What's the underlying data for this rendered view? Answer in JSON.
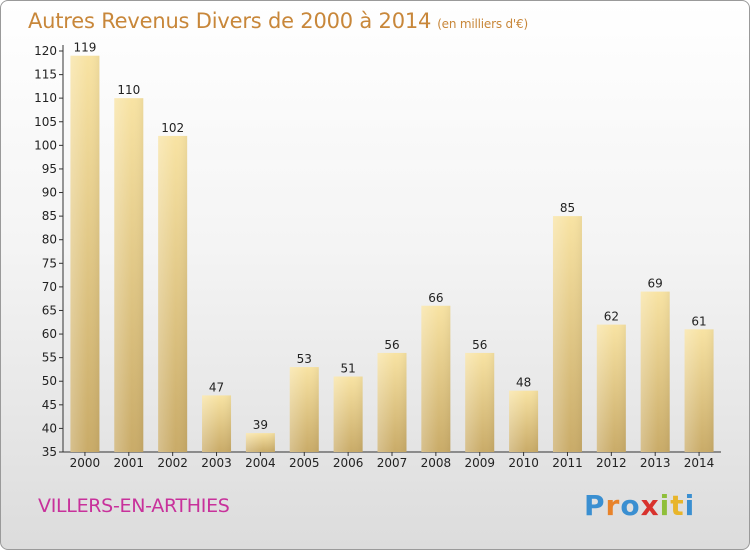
{
  "title": "Autres Revenus Divers de 2000 à 2014",
  "subtitle": "(en milliers d'€)",
  "town": "VILLERS-EN-ARTHIES",
  "logo": {
    "letters": [
      "P",
      "r",
      "o",
      "x",
      "i",
      "t",
      "i"
    ],
    "colors": [
      "#3a8fd1",
      "#e8832a",
      "#3a8fd1",
      "#d8322d",
      "#8fbf3a",
      "#e8b52a",
      "#3a8fd1"
    ]
  },
  "colors": {
    "title": "#c8873a",
    "town": "#c8319b",
    "bar_light": "#f8e3a3",
    "bar_dark": "#c9ab68"
  },
  "chart_data": {
    "type": "bar",
    "categories": [
      "2000",
      "2001",
      "2002",
      "2003",
      "2004",
      "2005",
      "2006",
      "2007",
      "2008",
      "2009",
      "2010",
      "2011",
      "2012",
      "2013",
      "2014"
    ],
    "values": [
      119,
      110,
      102,
      47,
      39,
      53,
      51,
      56,
      66,
      56,
      48,
      85,
      62,
      69,
      61
    ],
    "ylim": [
      35,
      120
    ],
    "yticks": [
      35,
      40,
      45,
      50,
      55,
      60,
      65,
      70,
      75,
      80,
      85,
      90,
      95,
      100,
      105,
      110,
      115,
      120
    ],
    "grid": false,
    "data_labels": true
  }
}
